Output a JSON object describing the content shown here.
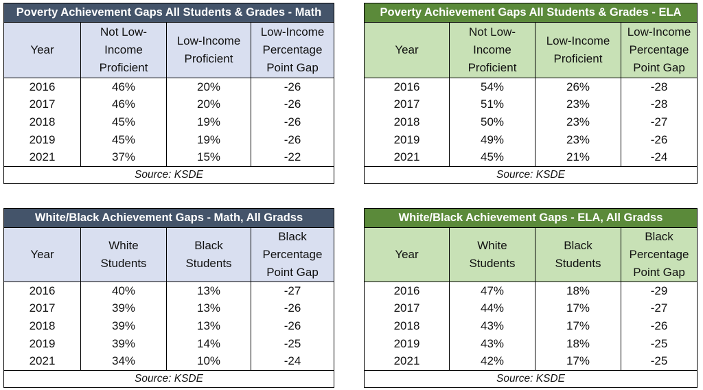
{
  "source_label": "Source: KSDE",
  "tables": [
    {
      "id": "math-poverty",
      "title": "Poverty Achievement Gaps All Students & Grades - Math",
      "headers": [
        "Year",
        "Not Low-\nIncome\nProficient",
        "Low-Income\nProficient",
        "Low-Income\nPercentage\nPoint Gap"
      ],
      "rows": [
        [
          "2016",
          "46%",
          "20%",
          "-26"
        ],
        [
          "2017",
          "46%",
          "20%",
          "-26"
        ],
        [
          "2018",
          "45%",
          "19%",
          "-26"
        ],
        [
          "2019",
          "45%",
          "19%",
          "-26"
        ],
        [
          "2021",
          "37%",
          "15%",
          "-22"
        ]
      ]
    },
    {
      "id": "ela-poverty",
      "title": "Poverty Achievement Gaps All Students & Grades - ELA",
      "headers": [
        "Year",
        "Not Low-\nIncome\nProficient",
        "Low-Income\nProficient",
        "Low-Income\nPercentage\nPoint Gap"
      ],
      "rows": [
        [
          "2016",
          "54%",
          "26%",
          "-28"
        ],
        [
          "2017",
          "51%",
          "23%",
          "-28"
        ],
        [
          "2018",
          "50%",
          "23%",
          "-27"
        ],
        [
          "2019",
          "49%",
          "23%",
          "-26"
        ],
        [
          "2021",
          "45%",
          "21%",
          "-24"
        ]
      ]
    },
    {
      "id": "math-white-black",
      "title": "White/Black Achievement Gaps  - Math, All Gradss",
      "headers": [
        "Year",
        "White\nStudents",
        "Black\nStudents",
        "Black\nPercentage\nPoint Gap"
      ],
      "rows": [
        [
          "2016",
          "40%",
          "13%",
          "-27"
        ],
        [
          "2017",
          "39%",
          "13%",
          "-26"
        ],
        [
          "2018",
          "39%",
          "13%",
          "-26"
        ],
        [
          "2019",
          "39%",
          "14%",
          "-25"
        ],
        [
          "2021",
          "34%",
          "10%",
          "-24"
        ]
      ]
    },
    {
      "id": "ela-white-black",
      "title": "White/Black Achievement Gaps  - ELA, All Gradss",
      "headers": [
        "Year",
        "White\nStudents",
        "Black\nStudents",
        "Black\nPercentage\nPoint Gap"
      ],
      "rows": [
        [
          "2016",
          "47%",
          "18%",
          "-29"
        ],
        [
          "2017",
          "44%",
          "17%",
          "-27"
        ],
        [
          "2018",
          "43%",
          "17%",
          "-26"
        ],
        [
          "2019",
          "43%",
          "18%",
          "-25"
        ],
        [
          "2021",
          "42%",
          "17%",
          "-25"
        ]
      ]
    }
  ],
  "colors": {
    "math_title_bg": "#44546a",
    "math_header_bg": "#d9dff0",
    "ela_title_bg": "#5b8a3a",
    "ela_header_bg": "#c8e1b6"
  }
}
